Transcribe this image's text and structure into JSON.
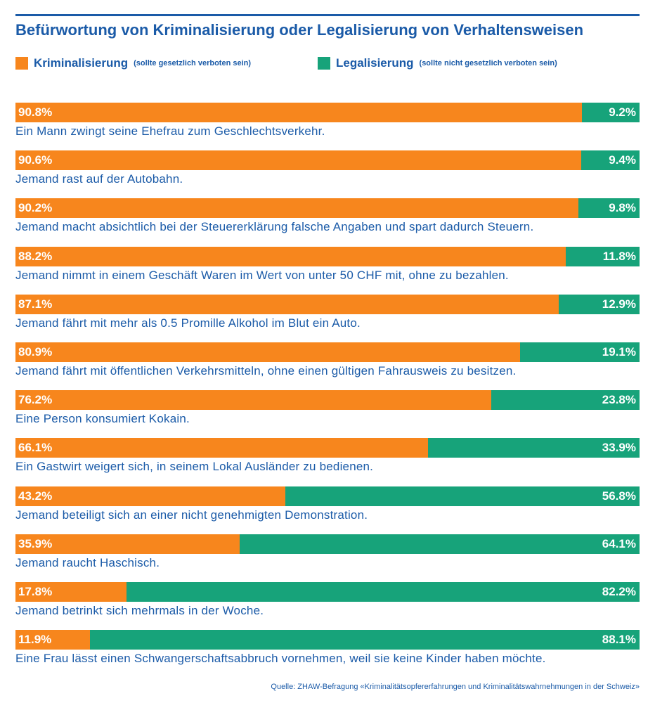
{
  "header": {
    "title": "Befürwortung von Kriminalisierung oder Legalisierung von Verhaltensweisen"
  },
  "legend": {
    "items": [
      {
        "name": "Kriminalisierung",
        "note": "(sollte gesetzlich verboten sein)",
        "color": "#f7861d"
      },
      {
        "name": "Legalisierung",
        "note": "(sollte nicht gesetzlich verboten sein)",
        "color": "#17a37a"
      }
    ]
  },
  "chart_data": {
    "type": "bar",
    "orientation": "horizontal-stacked-100",
    "series": [
      {
        "name": "Kriminalisierung",
        "color": "#f7861d",
        "values": [
          90.8,
          90.6,
          90.2,
          88.2,
          87.1,
          80.9,
          76.2,
          66.1,
          43.2,
          35.9,
          17.8,
          11.9
        ]
      },
      {
        "name": "Legalisierung",
        "color": "#17a37a",
        "values": [
          9.2,
          9.4,
          9.8,
          11.8,
          12.9,
          19.1,
          23.8,
          33.9,
          56.8,
          64.1,
          82.2,
          88.1
        ]
      }
    ],
    "value_labels_a": [
      "90.8%",
      "90.6%",
      "90.2%",
      "88.2%",
      "87.1%",
      "80.9%",
      "76.2%",
      "66.1%",
      "43.2%",
      "35.9%",
      "17.8%",
      "11.9%"
    ],
    "value_labels_b": [
      "9.2%",
      "9.4%",
      "9.8%",
      "11.8%",
      "12.9%",
      "19.1%",
      "23.8%",
      "33.9%",
      "56.8%",
      "64.1%",
      "82.2%",
      "88.1%"
    ],
    "categories": [
      "Ein Mann zwingt seine Ehefrau zum Geschlechtsverkehr.",
      "Jemand rast auf der Autobahn.",
      "Jemand macht absichtlich bei der Steuererklärung falsche Angaben und spart dadurch Steuern.",
      "Jemand nimmt in einem Geschäft Waren im Wert von unter 50 CHF mit, ohne zu bezahlen.",
      "Jemand fährt mit mehr als 0.5 Promille Alkohol im Blut ein Auto.",
      "Jemand fährt mit öffentlichen Verkehrsmitteln, ohne einen gültigen Fahrausweis zu besitzen.",
      "Eine Person konsumiert Kokain.",
      "Ein Gastwirt weigert sich, in seinem Lokal Ausländer zu bedienen.",
      "Jemand beteiligt sich an einer nicht genehmigten Demonstration.",
      "Jemand raucht Haschisch.",
      "Jemand betrinkt sich mehrmals in der Woche.",
      "Eine Frau lässt einen Schwangerschaftsabbruch vornehmen, weil sie keine Kinder haben möchte."
    ],
    "xlim": [
      0,
      100
    ]
  },
  "footer": {
    "source": "Quelle: ZHAW-Befragung «Kriminalitätsopfererfahrungen und Kriminalitätswahrnehmungen in der Schweiz»"
  }
}
